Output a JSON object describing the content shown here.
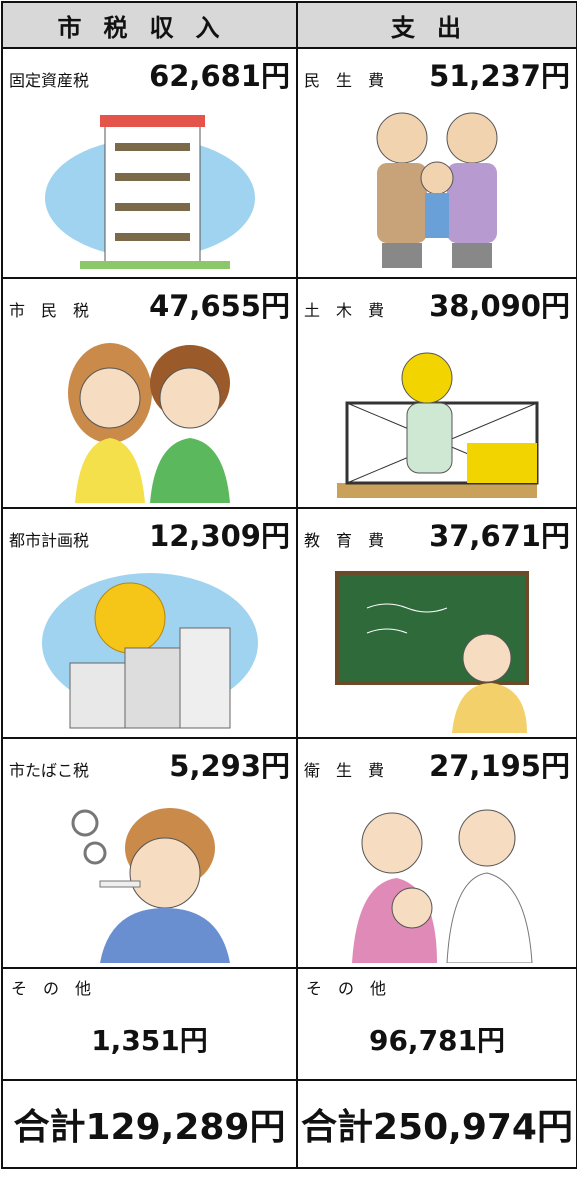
{
  "header": {
    "revenue": "市税収入",
    "expenditure": "支出"
  },
  "rows": [
    {
      "revenue": {
        "label": "固定資産税",
        "amount": "62,681円"
      },
      "expenditure": {
        "label": "民　生　費",
        "amount": "51,237円"
      }
    },
    {
      "revenue": {
        "label": "市　民　税",
        "amount": "47,655円"
      },
      "expenditure": {
        "label": "土　木　費",
        "amount": "38,090円"
      }
    },
    {
      "revenue": {
        "label": "都市計画税",
        "amount": "12,309円"
      },
      "expenditure": {
        "label": "教　育　費",
        "amount": "37,671円"
      }
    },
    {
      "revenue": {
        "label": "市たばこ税",
        "amount": "5,293円"
      },
      "expenditure": {
        "label": "衛　生　費",
        "amount": "27,195円"
      }
    }
  ],
  "other": {
    "revenue": {
      "label": "そ　の　他",
      "amount": "1,351円"
    },
    "expenditure": {
      "label": "そ　の　他",
      "amount": "96,781円"
    }
  },
  "totals": {
    "revenue": "合計129,289円",
    "expenditure": "合計250,974円"
  }
}
